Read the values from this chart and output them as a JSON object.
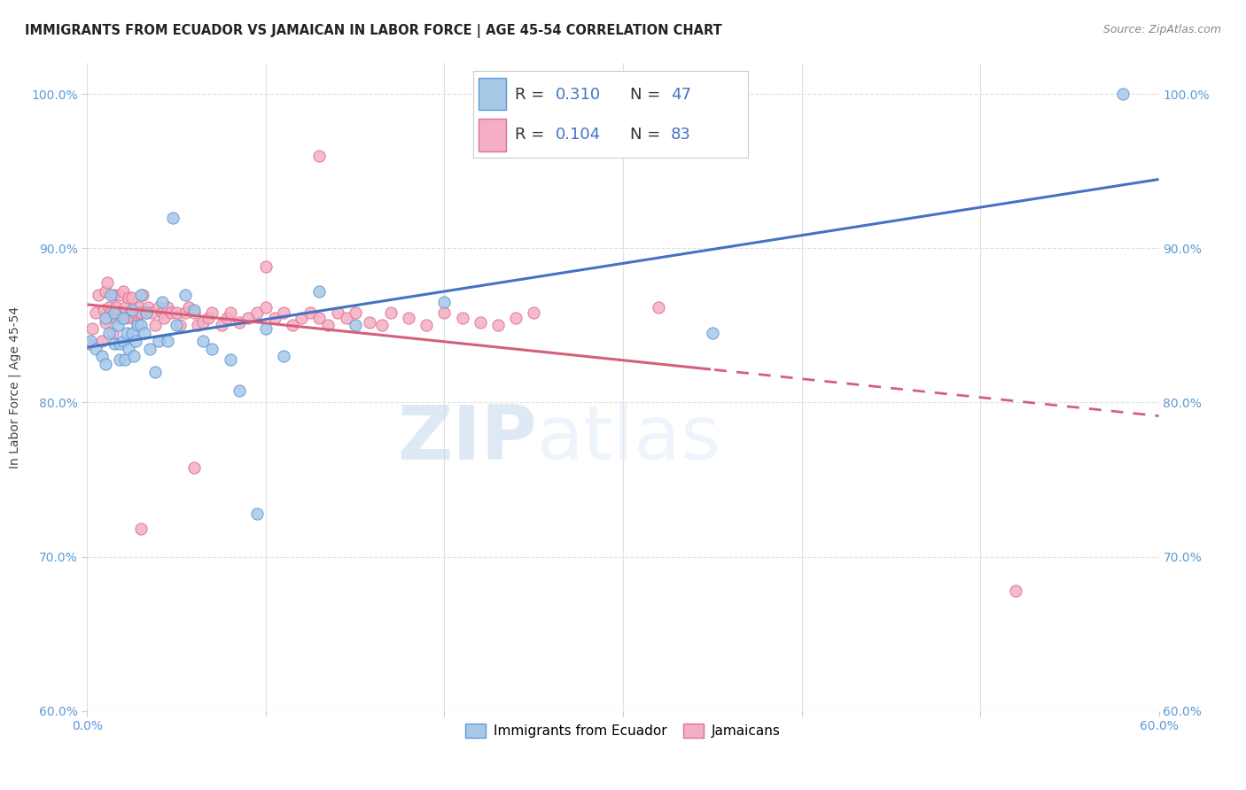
{
  "title": "IMMIGRANTS FROM ECUADOR VS JAMAICAN IN LABOR FORCE | AGE 45-54 CORRELATION CHART",
  "source": "Source: ZipAtlas.com",
  "ylabel": "In Labor Force | Age 45-54",
  "xlim": [
    0.0,
    0.6
  ],
  "ylim": [
    0.6,
    1.02
  ],
  "xticks": [
    0.0,
    0.1,
    0.2,
    0.3,
    0.4,
    0.5,
    0.6
  ],
  "yticks": [
    0.6,
    0.7,
    0.8,
    0.9,
    1.0
  ],
  "xticklabels": [
    "0.0%",
    "",
    "",
    "",
    "",
    "",
    "60.0%"
  ],
  "yticklabels": [
    "60.0%",
    "70.0%",
    "80.0%",
    "90.0%",
    "100.0%"
  ],
  "ecuador_color": "#a8c8e8",
  "jamaican_color": "#f4afc4",
  "ecuador_edge_color": "#5b9bd5",
  "jamaican_edge_color": "#e07090",
  "ecuador_line_color": "#4472c4",
  "jamaican_line_color": "#d4607a",
  "R_ecuador": "0.310",
  "N_ecuador": "47",
  "R_jamaican": "0.104",
  "N_jamaican": "83",
  "legend_ecuador": "Immigrants from Ecuador",
  "legend_jamaican": "Jamaicans",
  "watermark_zip": "ZIP",
  "watermark_atlas": "atlas",
  "grid_color": "#e0e0e0",
  "tick_color": "#5b9bd5",
  "ecuador_x": [
    0.002,
    0.005,
    0.008,
    0.01,
    0.01,
    0.012,
    0.013,
    0.015,
    0.015,
    0.017,
    0.018,
    0.018,
    0.02,
    0.02,
    0.021,
    0.022,
    0.023,
    0.025,
    0.025,
    0.026,
    0.027,
    0.028,
    0.03,
    0.03,
    0.032,
    0.033,
    0.035,
    0.038,
    0.04,
    0.042,
    0.045,
    0.048,
    0.05,
    0.055,
    0.06,
    0.065,
    0.07,
    0.08,
    0.085,
    0.095,
    0.1,
    0.11,
    0.13,
    0.15,
    0.2,
    0.35,
    0.58
  ],
  "ecuador_y": [
    0.84,
    0.835,
    0.83,
    0.855,
    0.825,
    0.845,
    0.87,
    0.858,
    0.838,
    0.85,
    0.838,
    0.828,
    0.855,
    0.84,
    0.828,
    0.845,
    0.835,
    0.86,
    0.845,
    0.83,
    0.84,
    0.85,
    0.87,
    0.85,
    0.845,
    0.858,
    0.835,
    0.82,
    0.84,
    0.865,
    0.84,
    0.92,
    0.85,
    0.87,
    0.86,
    0.84,
    0.835,
    0.828,
    0.808,
    0.728,
    0.848,
    0.83,
    0.872,
    0.85,
    0.865,
    0.845,
    1.0
  ],
  "jamaican_x": [
    0.001,
    0.003,
    0.005,
    0.006,
    0.008,
    0.009,
    0.01,
    0.01,
    0.011,
    0.012,
    0.013,
    0.014,
    0.015,
    0.016,
    0.016,
    0.017,
    0.018,
    0.019,
    0.02,
    0.02,
    0.021,
    0.022,
    0.023,
    0.024,
    0.025,
    0.026,
    0.027,
    0.028,
    0.029,
    0.03,
    0.031,
    0.033,
    0.034,
    0.036,
    0.038,
    0.04,
    0.042,
    0.043,
    0.045,
    0.047,
    0.05,
    0.052,
    0.055,
    0.057,
    0.06,
    0.062,
    0.065,
    0.068,
    0.07,
    0.075,
    0.078,
    0.08,
    0.085,
    0.09,
    0.095,
    0.1,
    0.105,
    0.11,
    0.115,
    0.12,
    0.125,
    0.13,
    0.135,
    0.14,
    0.145,
    0.15,
    0.158,
    0.165,
    0.17,
    0.18,
    0.19,
    0.2,
    0.21,
    0.22,
    0.23,
    0.24,
    0.25,
    0.32,
    0.03,
    0.06,
    0.1,
    0.13,
    0.52
  ],
  "jamaican_y": [
    0.838,
    0.848,
    0.858,
    0.87,
    0.84,
    0.86,
    0.872,
    0.852,
    0.878,
    0.862,
    0.858,
    0.845,
    0.87,
    0.862,
    0.855,
    0.858,
    0.87,
    0.855,
    0.872,
    0.858,
    0.862,
    0.855,
    0.868,
    0.858,
    0.868,
    0.855,
    0.858,
    0.852,
    0.862,
    0.858,
    0.87,
    0.858,
    0.862,
    0.858,
    0.85,
    0.862,
    0.858,
    0.855,
    0.862,
    0.858,
    0.858,
    0.85,
    0.858,
    0.862,
    0.858,
    0.85,
    0.852,
    0.855,
    0.858,
    0.85,
    0.855,
    0.858,
    0.852,
    0.855,
    0.858,
    0.862,
    0.855,
    0.858,
    0.85,
    0.855,
    0.858,
    0.855,
    0.85,
    0.858,
    0.855,
    0.858,
    0.852,
    0.85,
    0.858,
    0.855,
    0.85,
    0.858,
    0.855,
    0.852,
    0.85,
    0.855,
    0.858,
    0.862,
    0.718,
    0.758,
    0.888,
    0.96,
    0.678
  ]
}
